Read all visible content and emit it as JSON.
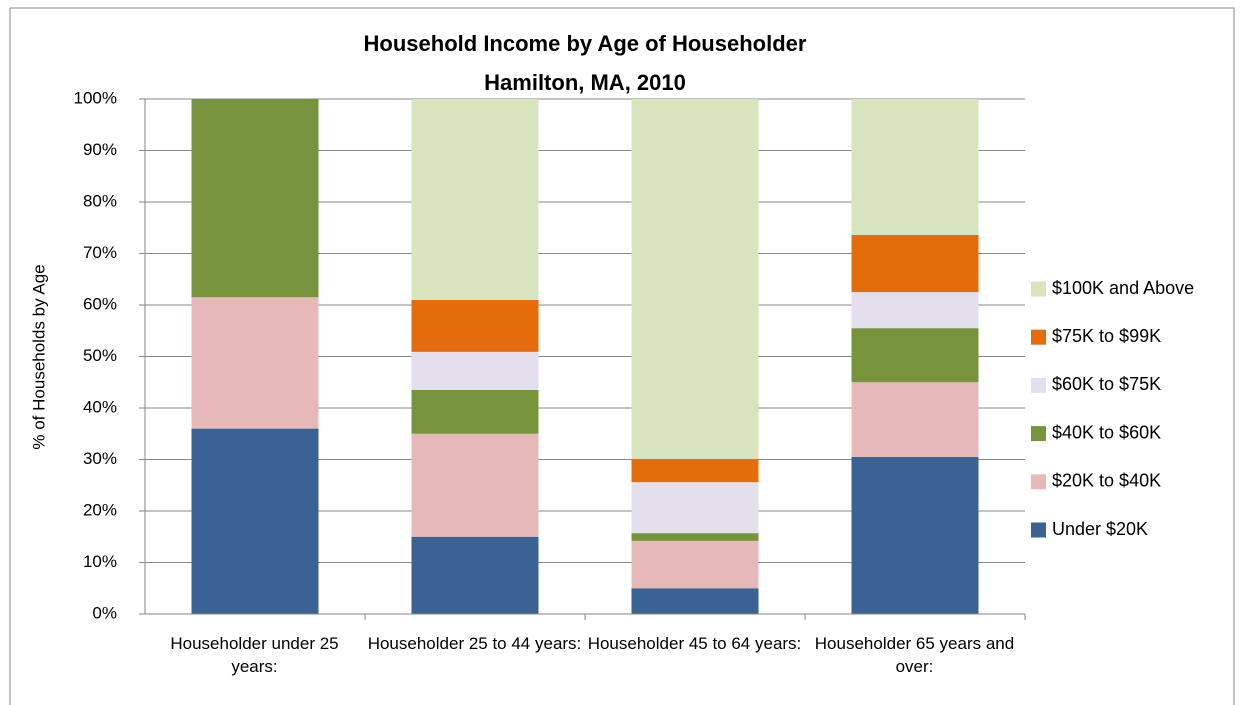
{
  "chart_data": {
    "type": "stacked_bar",
    "title": "Household Income by Age of Householder",
    "subtitle": "Hamilton, MA, 2010",
    "y_label": "% of Households by Age",
    "categories": [
      "Householder under 25 years:",
      "Householder 25 to 44 years:",
      "Householder 45 to 64 years:",
      "Householder 65 years and over:"
    ],
    "series": [
      {
        "name": "Under $20K",
        "color": "#3a6293",
        "values": [
          36,
          15,
          5,
          30.5
        ]
      },
      {
        "name": "$20K to $40K",
        "color": "#e6b9b8",
        "values": [
          25.5,
          20,
          9.2,
          14.5
        ]
      },
      {
        "name": "$40K to $60K",
        "color": "#77933c",
        "values": [
          38.5,
          8.5,
          1.5,
          10.5
        ]
      },
      {
        "name": "$60K to $75K",
        "color": "#e4dfec",
        "values": [
          0,
          7.4,
          9.9,
          7
        ]
      },
      {
        "name": "$75K to $99K",
        "color": "#e46c0a",
        "values": [
          0,
          10.1,
          4.5,
          11.1
        ]
      },
      {
        "name": "$100K and Above",
        "color": "#d7e4bd",
        "values": [
          0,
          39,
          69.9,
          26.4
        ]
      }
    ],
    "ylim": [
      0,
      100
    ],
    "yticks": [
      {
        "value": 0,
        "label": "0%"
      },
      {
        "value": 10,
        "label": "10%"
      },
      {
        "value": 20,
        "label": "20%"
      },
      {
        "value": 30,
        "label": "30%"
      },
      {
        "value": 40,
        "label": "40%"
      },
      {
        "value": 50,
        "label": "50%"
      },
      {
        "value": 60,
        "label": "60%"
      },
      {
        "value": 70,
        "label": "70%"
      },
      {
        "value": 80,
        "label": "80%"
      },
      {
        "value": 90,
        "label": "90%"
      },
      {
        "value": 100,
        "label": "100%"
      }
    ],
    "grid": true,
    "legend": "right"
  }
}
